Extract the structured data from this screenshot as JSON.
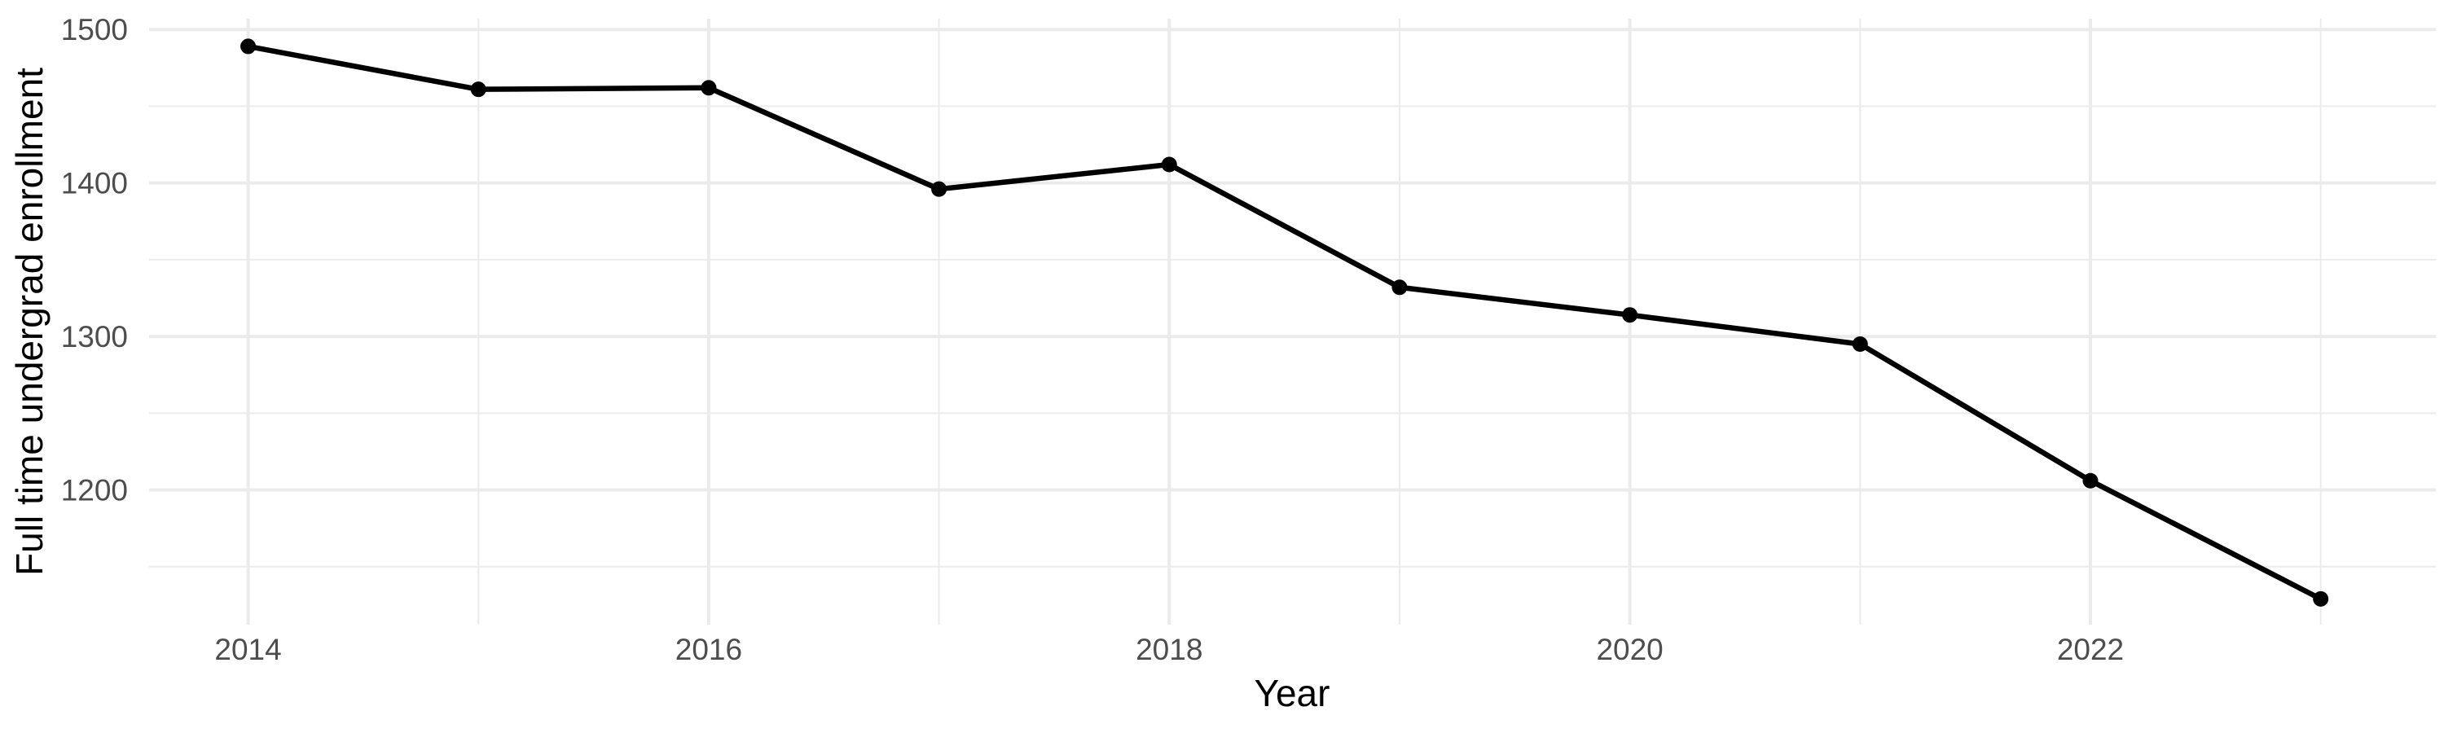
{
  "chart_data": {
    "type": "line",
    "title": "",
    "xlabel": "Year",
    "ylabel": "Full time undergrad enrollment",
    "x": [
      2014,
      2015,
      2016,
      2017,
      2018,
      2019,
      2020,
      2021,
      2022,
      2023
    ],
    "series": [
      {
        "name": "Full time undergrad enrollment",
        "values": [
          1489,
          1461,
          1462,
          1396,
          1412,
          1332,
          1314,
          1295,
          1206,
          1129
        ]
      }
    ],
    "x_major_ticks": [
      2014,
      2016,
      2018,
      2020,
      2022
    ],
    "x_tick_labels": [
      "2014",
      "2016",
      "2018",
      "2020",
      "2022"
    ],
    "x_minor_gridlines": [
      2015,
      2017,
      2019,
      2021,
      2023
    ],
    "y_major_ticks": [
      1200,
      1300,
      1400,
      1500
    ],
    "y_tick_labels": [
      "1200",
      "1300",
      "1400",
      "1500"
    ],
    "y_minor_gridlines": [
      1150,
      1250,
      1350,
      1450
    ],
    "xlim": [
      2013.57,
      2023.5
    ],
    "ylim": [
      1112.2,
      1507.0
    ],
    "grid": "major-and-minor",
    "legend": "none",
    "style": {
      "background": "#FFFFFF",
      "grid_color": "#EBEBEB",
      "line_color": "#000000",
      "point_color": "#000000",
      "tick_label_color": "#4D4D4D",
      "axis_title_color": "#000000"
    }
  }
}
